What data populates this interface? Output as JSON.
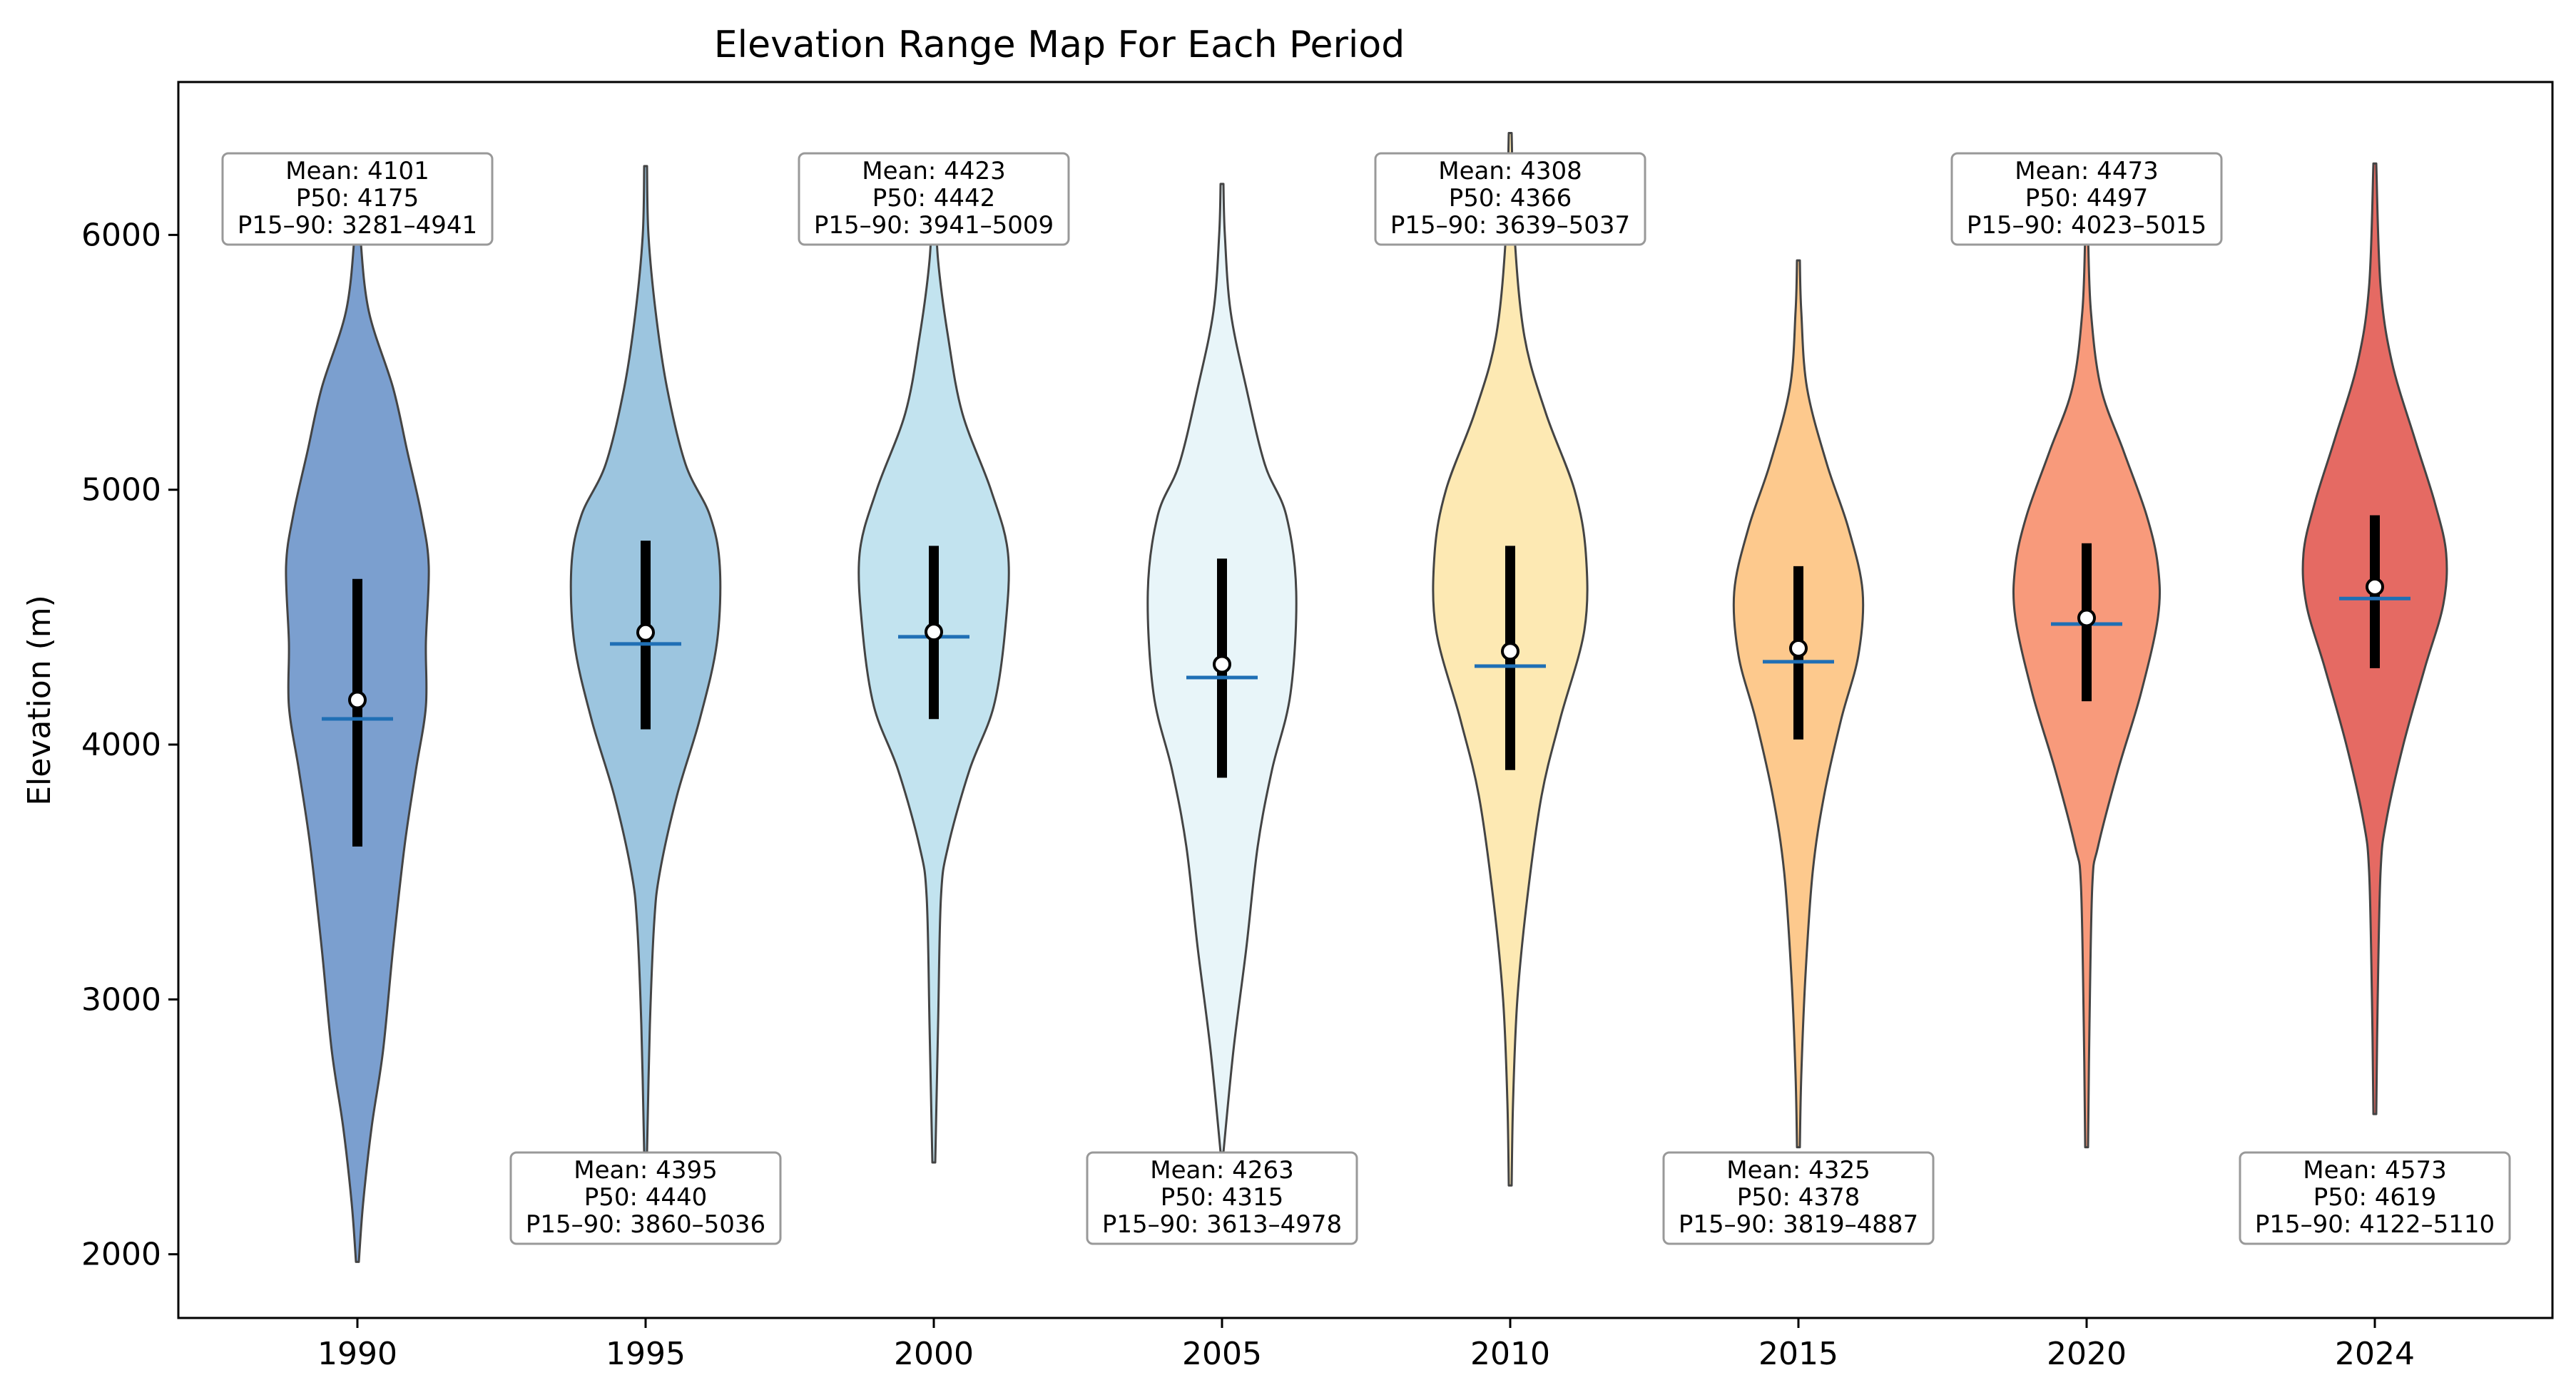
{
  "chart_data": {
    "type": "violin",
    "title": "Elevation Range Map For Each Period",
    "xlabel": "",
    "ylabel": "Elevation (m)",
    "ylim": [
      1750,
      6600
    ],
    "yticks": [
      2000,
      3000,
      4000,
      5000,
      6000
    ],
    "categories": [
      "1990",
      "1995",
      "2000",
      "2005",
      "2010",
      "2015",
      "2020",
      "2024"
    ],
    "annotation_position": [
      "top",
      "bottom",
      "top",
      "bottom",
      "top",
      "bottom",
      "top",
      "bottom"
    ],
    "series": [
      {
        "name": "1990",
        "color": "#7b9fcf",
        "mean": 4101,
        "p50": 4175,
        "p15": 3281,
        "p90": 4941,
        "iqr": [
          3600,
          4650
        ],
        "min": 1970,
        "max": 6150,
        "profile": [
          [
            1970,
            0.01
          ],
          [
            2200,
            0.04
          ],
          [
            2500,
            0.1
          ],
          [
            2800,
            0.18
          ],
          [
            3200,
            0.25
          ],
          [
            3600,
            0.33
          ],
          [
            3900,
            0.41
          ],
          [
            4150,
            0.48
          ],
          [
            4400,
            0.48
          ],
          [
            4700,
            0.5
          ],
          [
            4900,
            0.45
          ],
          [
            5150,
            0.35
          ],
          [
            5400,
            0.25
          ],
          [
            5700,
            0.08
          ],
          [
            6000,
            0.02
          ],
          [
            6150,
            0.01
          ]
        ],
        "label_mean": "Mean: 4101",
        "label_p50": "P50: 4175",
        "label_range": "P15–90: 3281–4941"
      },
      {
        "name": "1995",
        "color": "#9cc5df",
        "mean": 4395,
        "p50": 4440,
        "p15": 3860,
        "p90": 5036,
        "iqr": [
          4060,
          4800
        ],
        "min": 2400,
        "max": 6270,
        "profile": [
          [
            2400,
            0.01
          ],
          [
            2900,
            0.03
          ],
          [
            3300,
            0.06
          ],
          [
            3500,
            0.1
          ],
          [
            3800,
            0.22
          ],
          [
            4100,
            0.38
          ],
          [
            4400,
            0.5
          ],
          [
            4700,
            0.52
          ],
          [
            4900,
            0.45
          ],
          [
            5100,
            0.28
          ],
          [
            5400,
            0.15
          ],
          [
            5700,
            0.07
          ],
          [
            6000,
            0.02
          ],
          [
            6270,
            0.01
          ]
        ],
        "label_mean": "Mean: 4395",
        "label_p50": "P50: 4440",
        "label_range": "P15–90: 3860–5036"
      },
      {
        "name": "2000",
        "color": "#c2e3ef",
        "mean": 4423,
        "p50": 4442,
        "p15": 3941,
        "p90": 5009,
        "iqr": [
          4100,
          4780
        ],
        "min": 2360,
        "max": 6150,
        "profile": [
          [
            2360,
            0.01
          ],
          [
            2900,
            0.03
          ],
          [
            3400,
            0.05
          ],
          [
            3600,
            0.1
          ],
          [
            3900,
            0.25
          ],
          [
            4150,
            0.42
          ],
          [
            4450,
            0.5
          ],
          [
            4750,
            0.52
          ],
          [
            5000,
            0.4
          ],
          [
            5300,
            0.2
          ],
          [
            5600,
            0.1
          ],
          [
            5900,
            0.03
          ],
          [
            6150,
            0.01
          ]
        ],
        "label_mean": "Mean: 4423",
        "label_p50": "P50: 4442",
        "label_range": "P15–90: 3941–5009"
      },
      {
        "name": "2005",
        "color": "#e8f5f9",
        "mean": 4263,
        "p50": 4315,
        "p15": 3613,
        "p90": 4978,
        "iqr": [
          3870,
          4730
        ],
        "min": 2400,
        "max": 6200,
        "profile": [
          [
            2400,
            0.01
          ],
          [
            2800,
            0.08
          ],
          [
            3200,
            0.17
          ],
          [
            3600,
            0.25
          ],
          [
            3900,
            0.35
          ],
          [
            4200,
            0.48
          ],
          [
            4600,
            0.52
          ],
          [
            4900,
            0.45
          ],
          [
            5100,
            0.3
          ],
          [
            5400,
            0.17
          ],
          [
            5700,
            0.06
          ],
          [
            6000,
            0.02
          ],
          [
            6200,
            0.01
          ]
        ],
        "label_mean": "Mean: 4263",
        "label_p50": "P50: 4315",
        "label_range": "P15–90: 3613–4978"
      },
      {
        "name": "2010",
        "color": "#fde9b3",
        "mean": 4308,
        "p50": 4366,
        "p15": 3639,
        "p90": 5037,
        "iqr": [
          3900,
          4780
        ],
        "min": 2270,
        "max": 6400,
        "profile": [
          [
            2270,
            0.01
          ],
          [
            2600,
            0.02
          ],
          [
            3000,
            0.05
          ],
          [
            3400,
            0.12
          ],
          [
            3800,
            0.22
          ],
          [
            4100,
            0.35
          ],
          [
            4450,
            0.52
          ],
          [
            4750,
            0.53
          ],
          [
            5000,
            0.45
          ],
          [
            5300,
            0.25
          ],
          [
            5600,
            0.1
          ],
          [
            6000,
            0.03
          ],
          [
            6400,
            0.01
          ]
        ],
        "label_mean": "Mean: 4308",
        "label_p50": "P50: 4366",
        "label_range": "P15–90: 3639–5037"
      },
      {
        "name": "2015",
        "color": "#fdc98d",
        "mean": 4325,
        "p50": 4378,
        "p15": 3819,
        "p90": 4887,
        "iqr": [
          4020,
          4700
        ],
        "min": 2420,
        "max": 5900,
        "profile": [
          [
            2420,
            0.01
          ],
          [
            2700,
            0.02
          ],
          [
            3100,
            0.05
          ],
          [
            3500,
            0.1
          ],
          [
            3800,
            0.18
          ],
          [
            4100,
            0.3
          ],
          [
            4350,
            0.42
          ],
          [
            4600,
            0.45
          ],
          [
            4850,
            0.35
          ],
          [
            5100,
            0.2
          ],
          [
            5400,
            0.06
          ],
          [
            5700,
            0.02
          ],
          [
            5900,
            0.01
          ]
        ],
        "label_mean": "Mean: 4325",
        "label_p50": "P50: 4378",
        "label_range": "P15–90: 3819–4887"
      },
      {
        "name": "2020",
        "color": "#f89a7b",
        "mean": 4473,
        "p50": 4497,
        "p15": 4023,
        "p90": 5015,
        "iqr": [
          4170,
          4790
        ],
        "min": 2420,
        "max": 6000,
        "profile": [
          [
            2420,
            0.01
          ],
          [
            2900,
            0.02
          ],
          [
            3450,
            0.04
          ],
          [
            3600,
            0.08
          ],
          [
            3900,
            0.22
          ],
          [
            4200,
            0.38
          ],
          [
            4500,
            0.5
          ],
          [
            4700,
            0.5
          ],
          [
            4900,
            0.42
          ],
          [
            5150,
            0.26
          ],
          [
            5400,
            0.1
          ],
          [
            5700,
            0.03
          ],
          [
            6000,
            0.01
          ]
        ],
        "label_mean": "Mean: 4473",
        "label_p50": "P50: 4497",
        "label_range": "P15–90: 4023–5015"
      },
      {
        "name": "2024",
        "color": "#e56a63",
        "mean": 4573,
        "p50": 4619,
        "p15": 4122,
        "p90": 5110,
        "iqr": [
          4300,
          4900
        ],
        "min": 2550,
        "max": 6280,
        "profile": [
          [
            2550,
            0.01
          ],
          [
            3000,
            0.02
          ],
          [
            3500,
            0.04
          ],
          [
            3700,
            0.08
          ],
          [
            4000,
            0.2
          ],
          [
            4300,
            0.35
          ],
          [
            4550,
            0.48
          ],
          [
            4750,
            0.5
          ],
          [
            4950,
            0.42
          ],
          [
            5200,
            0.28
          ],
          [
            5500,
            0.12
          ],
          [
            5800,
            0.04
          ],
          [
            6280,
            0.01
          ]
        ],
        "label_mean": "Mean: 4573",
        "label_p50": "P50: 4619",
        "label_range": "P15–90: 4122–5110"
      }
    ],
    "grid": false,
    "legend": "none"
  }
}
